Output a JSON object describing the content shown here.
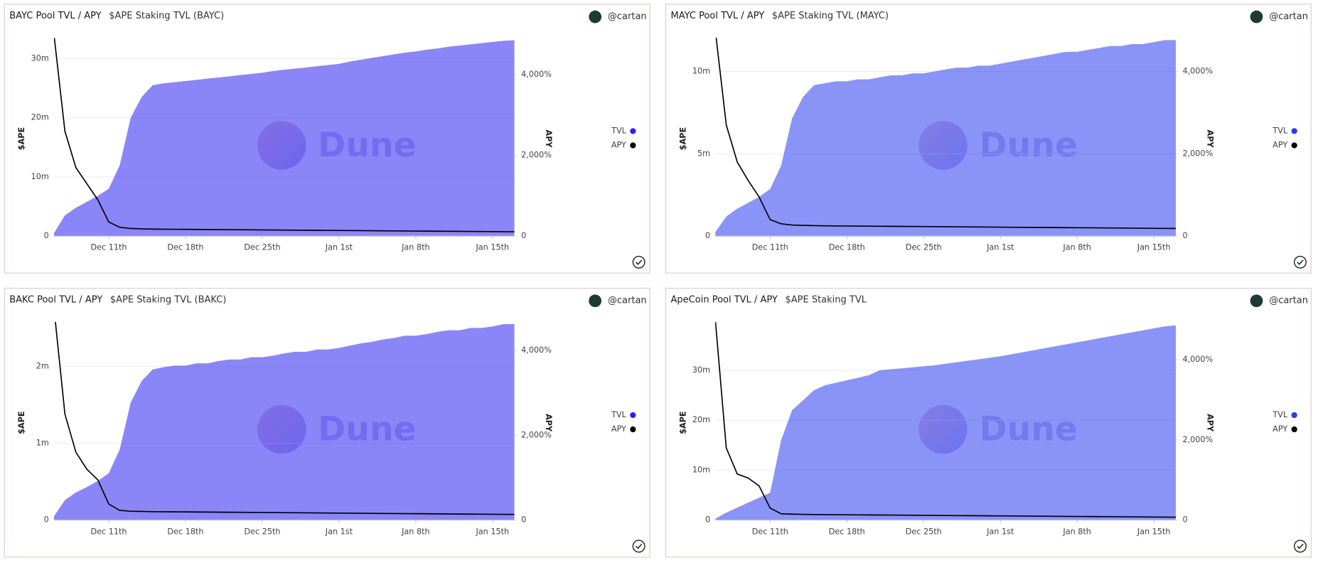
{
  "chart_data": [
    {
      "type": "area-line",
      "title": "BAYC Pool TVL / APY",
      "subtitle": "$APE Staking TVL (BAYC)",
      "author": "@cartan",
      "watermark": "Dune",
      "ylabel": "$APE",
      "y2label": "APY",
      "legend": "right",
      "grid": true,
      "x": [
        "Dec 6",
        "Dec 7",
        "Dec 8",
        "Dec 9",
        "Dec 10",
        "Dec 11",
        "Dec 12",
        "Dec 13",
        "Dec 14",
        "Dec 15",
        "Dec 16",
        "Dec 17",
        "Dec 18",
        "Dec 19",
        "Dec 20",
        "Dec 21",
        "Dec 22",
        "Dec 23",
        "Dec 24",
        "Dec 25",
        "Dec 26",
        "Dec 27",
        "Dec 28",
        "Dec 29",
        "Dec 30",
        "Dec 31",
        "Jan 1",
        "Jan 2",
        "Jan 3",
        "Jan 4",
        "Jan 5",
        "Jan 6",
        "Jan 7",
        "Jan 8",
        "Jan 9",
        "Jan 10",
        "Jan 11",
        "Jan 12",
        "Jan 13",
        "Jan 14",
        "Jan 15",
        "Jan 16",
        "Jan 17"
      ],
      "xticks": [
        {
          "value": "Dec 11",
          "label": "Dec 11th"
        },
        {
          "value": "Dec 18",
          "label": "Dec 18th"
        },
        {
          "value": "Dec 25",
          "label": "Dec 25th"
        },
        {
          "value": "Jan 1",
          "label": "Jan 1st"
        },
        {
          "value": "Jan 8",
          "label": "Jan 8th"
        },
        {
          "value": "Jan 15",
          "label": "Jan 15th"
        }
      ],
      "ylim": [
        0,
        33500000
      ],
      "yticks": [
        0,
        {
          "value": 10000000,
          "label": "10m"
        },
        {
          "value": 20000000,
          "label": "20m"
        },
        {
          "value": 30000000,
          "label": "30m"
        }
      ],
      "y2lim": [
        0,
        4917
      ],
      "y2ticks": [
        0,
        {
          "value": 2000,
          "label": "2,000%"
        },
        {
          "value": 4000,
          "label": "4,000%"
        }
      ],
      "series": [
        {
          "name": "TVL",
          "color": "#2a22f0",
          "values": [
            500000,
            3500000,
            4800000,
            5800000,
            6800000,
            8000000,
            12000000,
            20000000,
            23500000,
            25500000,
            25800000,
            26000000,
            26200000,
            26400000,
            26600000,
            26800000,
            27000000,
            27200000,
            27400000,
            27600000,
            27900000,
            28100000,
            28300000,
            28500000,
            28700000,
            28900000,
            29100000,
            29500000,
            29800000,
            30100000,
            30400000,
            30700000,
            31000000,
            31200000,
            31500000,
            31700000,
            32000000,
            32200000,
            32400000,
            32600000,
            32800000,
            33000000,
            33100000
          ]
        },
        {
          "name": "APY",
          "color": "#000000",
          "axis": "y2",
          "values": [
            5000,
            2600,
            1700,
            1300,
            900,
            350,
            220,
            190,
            180,
            175,
            172,
            170,
            168,
            166,
            164,
            162,
            160,
            158,
            156,
            154,
            152,
            150,
            148,
            146,
            144,
            142,
            140,
            138,
            136,
            134,
            132,
            130,
            128,
            126,
            124,
            122,
            120,
            118,
            116,
            114,
            112,
            110,
            108
          ]
        }
      ]
    },
    {
      "type": "area-line",
      "title": "MAYC Pool TVL / APY",
      "subtitle": "$APE Staking TVL (MAYC)",
      "author": "@cartan",
      "watermark": "Dune",
      "ylabel": "$APE",
      "y2label": "APY",
      "legend": "right",
      "grid": true,
      "x": [
        "Dec 6",
        "Dec 7",
        "Dec 8",
        "Dec 9",
        "Dec 10",
        "Dec 11",
        "Dec 12",
        "Dec 13",
        "Dec 14",
        "Dec 15",
        "Dec 16",
        "Dec 17",
        "Dec 18",
        "Dec 19",
        "Dec 20",
        "Dec 21",
        "Dec 22",
        "Dec 23",
        "Dec 24",
        "Dec 25",
        "Dec 26",
        "Dec 27",
        "Dec 28",
        "Dec 29",
        "Dec 30",
        "Dec 31",
        "Jan 1",
        "Jan 2",
        "Jan 3",
        "Jan 4",
        "Jan 5",
        "Jan 6",
        "Jan 7",
        "Jan 8",
        "Jan 9",
        "Jan 10",
        "Jan 11",
        "Jan 12",
        "Jan 13",
        "Jan 14",
        "Jan 15",
        "Jan 16",
        "Jan 17"
      ],
      "xticks": [
        {
          "value": "Dec 11",
          "label": "Dec 11th"
        },
        {
          "value": "Dec 18",
          "label": "Dec 18th"
        },
        {
          "value": "Dec 25",
          "label": "Dec 25th"
        },
        {
          "value": "Jan 1",
          "label": "Jan 1st"
        },
        {
          "value": "Jan 8",
          "label": "Jan 8th"
        },
        {
          "value": "Jan 15",
          "label": "Jan 15th"
        }
      ],
      "ylim": [
        0,
        12040000
      ],
      "yticks": [
        0,
        {
          "value": 5000000,
          "label": "5m"
        },
        {
          "value": 10000000,
          "label": "10m"
        }
      ],
      "y2lim": [
        0,
        4816
      ],
      "y2ticks": [
        0,
        {
          "value": 2000,
          "label": "2,000%"
        },
        {
          "value": 4000,
          "label": "4,000%"
        }
      ],
      "series": [
        {
          "name": "TVL",
          "color": "#2a3cf0",
          "values": [
            240000,
            1190000,
            1670000,
            2020000,
            2380000,
            2860000,
            4280000,
            7140000,
            8450000,
            9160000,
            9280000,
            9400000,
            9400000,
            9520000,
            9520000,
            9640000,
            9760000,
            9760000,
            9880000,
            9880000,
            10000000,
            10120000,
            10230000,
            10230000,
            10350000,
            10350000,
            10470000,
            10590000,
            10710000,
            10830000,
            10950000,
            11070000,
            11190000,
            11190000,
            11310000,
            11420000,
            11540000,
            11540000,
            11660000,
            11660000,
            11780000,
            11900000,
            11900000
          ]
        },
        {
          "name": "APY",
          "color": "#000000",
          "axis": "y2",
          "values": [
            5000,
            2700,
            1800,
            1350,
            950,
            400,
            300,
            270,
            260,
            255,
            250,
            248,
            246,
            244,
            242,
            240,
            238,
            236,
            234,
            232,
            230,
            228,
            226,
            224,
            222,
            220,
            218,
            216,
            214,
            212,
            210,
            208,
            206,
            204,
            202,
            200,
            198,
            196,
            194,
            192,
            190,
            188,
            186
          ]
        }
      ]
    },
    {
      "type": "area-line",
      "title": "BAKC Pool TVL / APY",
      "subtitle": "$APE Staking TVL (BAKC)",
      "author": "@cartan",
      "watermark": "Dune",
      "ylabel": "$APE",
      "y2label": "APY",
      "legend": "right",
      "grid": true,
      "x": [
        "Dec 6",
        "Dec 7",
        "Dec 8",
        "Dec 9",
        "Dec 10",
        "Dec 11",
        "Dec 12",
        "Dec 13",
        "Dec 14",
        "Dec 15",
        "Dec 16",
        "Dec 17",
        "Dec 18",
        "Dec 19",
        "Dec 20",
        "Dec 21",
        "Dec 22",
        "Dec 23",
        "Dec 24",
        "Dec 25",
        "Dec 26",
        "Dec 27",
        "Dec 28",
        "Dec 29",
        "Dec 30",
        "Dec 31",
        "Jan 1",
        "Jan 2",
        "Jan 3",
        "Jan 4",
        "Jan 5",
        "Jan 6",
        "Jan 7",
        "Jan 8",
        "Jan 9",
        "Jan 10",
        "Jan 11",
        "Jan 12",
        "Jan 13",
        "Jan 14",
        "Jan 15",
        "Jan 16",
        "Jan 17"
      ],
      "xticks": [
        {
          "value": "Dec 11",
          "label": "Dec 11th"
        },
        {
          "value": "Dec 18",
          "label": "Dec 18th"
        },
        {
          "value": "Dec 25",
          "label": "Dec 25th"
        },
        {
          "value": "Jan 1",
          "label": "Jan 1st"
        },
        {
          "value": "Jan 8",
          "label": "Jan 8th"
        },
        {
          "value": "Jan 15",
          "label": "Jan 15th"
        }
      ],
      "ylim": [
        0,
        2580000
      ],
      "yticks": [
        0,
        {
          "value": 1000000,
          "label": "1m"
        },
        {
          "value": 2000000,
          "label": "2m"
        }
      ],
      "y2lim": [
        0,
        4673
      ],
      "y2ticks": [
        0,
        {
          "value": 2000,
          "label": "2,000%"
        },
        {
          "value": 4000,
          "label": "4,000%"
        }
      ],
      "series": [
        {
          "name": "TVL",
          "color": "#2a22f0",
          "values": [
            50000,
            260000,
            360000,
            430000,
            510000,
            610000,
            920000,
            1530000,
            1810000,
            1960000,
            1990000,
            2010000,
            2010000,
            2040000,
            2040000,
            2070000,
            2090000,
            2090000,
            2120000,
            2120000,
            2140000,
            2170000,
            2190000,
            2190000,
            2220000,
            2220000,
            2240000,
            2270000,
            2300000,
            2320000,
            2350000,
            2370000,
            2400000,
            2400000,
            2420000,
            2450000,
            2470000,
            2470000,
            2500000,
            2500000,
            2520000,
            2550000,
            2550000
          ]
        },
        {
          "name": "APY",
          "color": "#000000",
          "axis": "y2",
          "values": [
            5000,
            2500,
            1600,
            1200,
            950,
            380,
            230,
            210,
            205,
            200,
            198,
            196,
            194,
            192,
            190,
            188,
            186,
            184,
            182,
            180,
            178,
            176,
            174,
            172,
            170,
            168,
            166,
            164,
            162,
            160,
            158,
            156,
            154,
            152,
            150,
            148,
            146,
            144,
            142,
            140,
            138,
            136,
            134
          ]
        }
      ]
    },
    {
      "type": "area-line",
      "title": "ApeCoin Pool TVL / APY",
      "subtitle": "$APE Staking TVL",
      "author": "@cartan",
      "watermark": "Dune",
      "ylabel": "$APE",
      "y2label": "APY",
      "legend": "right",
      "grid": true,
      "x": [
        "Dec 6",
        "Dec 7",
        "Dec 8",
        "Dec 9",
        "Dec 10",
        "Dec 11",
        "Dec 12",
        "Dec 13",
        "Dec 14",
        "Dec 15",
        "Dec 16",
        "Dec 17",
        "Dec 18",
        "Dec 19",
        "Dec 20",
        "Dec 21",
        "Dec 22",
        "Dec 23",
        "Dec 24",
        "Dec 25",
        "Dec 26",
        "Dec 27",
        "Dec 28",
        "Dec 29",
        "Dec 30",
        "Dec 31",
        "Jan 1",
        "Jan 2",
        "Jan 3",
        "Jan 4",
        "Jan 5",
        "Jan 6",
        "Jan 7",
        "Jan 8",
        "Jan 9",
        "Jan 10",
        "Jan 11",
        "Jan 12",
        "Jan 13",
        "Jan 14",
        "Jan 15",
        "Jan 16",
        "Jan 17"
      ],
      "xticks": [
        {
          "value": "Dec 11",
          "label": "Dec 11th"
        },
        {
          "value": "Dec 18",
          "label": "Dec 18th"
        },
        {
          "value": "Dec 25",
          "label": "Dec 25th"
        },
        {
          "value": "Jan 1",
          "label": "Jan 1st"
        },
        {
          "value": "Jan 8",
          "label": "Jan 8th"
        },
        {
          "value": "Jan 15",
          "label": "Jan 15th"
        }
      ],
      "ylim": [
        0,
        39700000
      ],
      "yticks": [
        0,
        {
          "value": 10000000,
          "label": "10m"
        },
        {
          "value": 20000000,
          "label": "20m"
        },
        {
          "value": 30000000,
          "label": "30m"
        }
      ],
      "y2lim": [
        0,
        4942
      ],
      "y2ticks": [
        0,
        {
          "value": 2000,
          "label": "2,000%"
        },
        {
          "value": 4000,
          "label": "4,000%"
        }
      ],
      "series": [
        {
          "name": "TVL",
          "color": "#2a3cf0",
          "values": [
            300000,
            1500000,
            2500000,
            3500000,
            4500000,
            5500000,
            16000000,
            22000000,
            24000000,
            26000000,
            27000000,
            27500000,
            28000000,
            28500000,
            29000000,
            30000000,
            30200000,
            30400000,
            30600000,
            30800000,
            31000000,
            31300000,
            31600000,
            31900000,
            32200000,
            32500000,
            32800000,
            33200000,
            33600000,
            34000000,
            34400000,
            34800000,
            35200000,
            35600000,
            36000000,
            36400000,
            36800000,
            37200000,
            37600000,
            38000000,
            38400000,
            38800000,
            39000000
          ]
        },
        {
          "name": "APY",
          "color": "#000000",
          "axis": "y2",
          "values": [
            5000,
            1800,
            1150,
            1050,
            850,
            300,
            160,
            150,
            145,
            140,
            138,
            136,
            134,
            132,
            130,
            128,
            126,
            124,
            122,
            120,
            118,
            116,
            114,
            112,
            110,
            108,
            106,
            104,
            102,
            100,
            98,
            96,
            94,
            92,
            90,
            88,
            86,
            84,
            82,
            80,
            78,
            76,
            74
          ]
        }
      ]
    }
  ]
}
